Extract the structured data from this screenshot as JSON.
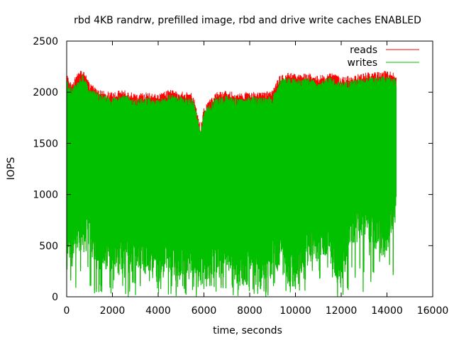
{
  "chart_data": {
    "type": "line",
    "title": "rbd 4KB randrw, prefilled image, rbd and drive write caches ENABLED",
    "xlabel": "time, seconds",
    "ylabel": "IOPS",
    "xlim": [
      0,
      16000
    ],
    "ylim": [
      0,
      2500
    ],
    "xticks": [
      0,
      2000,
      4000,
      6000,
      8000,
      10000,
      12000,
      14000,
      16000
    ],
    "yticks": [
      0,
      500,
      1000,
      1500,
      2000,
      2500
    ],
    "grid": false,
    "legend_position": "top-right",
    "series": [
      {
        "name": "reads",
        "color": "#ff0000",
        "x_range": [
          0,
          14400
        ],
        "upper_envelope": [
          [
            0,
            2150
          ],
          [
            200,
            2050
          ],
          [
            500,
            2150
          ],
          [
            700,
            2200
          ],
          [
            1000,
            2050
          ],
          [
            1500,
            1990
          ],
          [
            2000,
            1960
          ],
          [
            2500,
            1990
          ],
          [
            3000,
            1950
          ],
          [
            3500,
            1960
          ],
          [
            4000,
            1940
          ],
          [
            4500,
            1990
          ],
          [
            5000,
            1970
          ],
          [
            5500,
            1950
          ],
          [
            5700,
            1800
          ],
          [
            5850,
            1620
          ],
          [
            6000,
            1820
          ],
          [
            6500,
            1960
          ],
          [
            7000,
            1980
          ],
          [
            7500,
            1950
          ],
          [
            8000,
            1970
          ],
          [
            8500,
            1960
          ],
          [
            9000,
            1980
          ],
          [
            9300,
            2120
          ],
          [
            9600,
            2160
          ],
          [
            10000,
            2140
          ],
          [
            10500,
            2150
          ],
          [
            11000,
            2120
          ],
          [
            11500,
            2160
          ],
          [
            12000,
            2110
          ],
          [
            12500,
            2130
          ],
          [
            13000,
            2150
          ],
          [
            13500,
            2160
          ],
          [
            14000,
            2170
          ],
          [
            14400,
            2150
          ]
        ]
      },
      {
        "name": "writes",
        "color": "#00c000",
        "x_range": [
          0,
          14400
        ],
        "upper_envelope": [
          [
            0,
            2100
          ],
          [
            200,
            2000
          ],
          [
            500,
            2080
          ],
          [
            700,
            2130
          ],
          [
            1000,
            2000
          ],
          [
            1500,
            1940
          ],
          [
            2000,
            1910
          ],
          [
            2500,
            1940
          ],
          [
            3000,
            1900
          ],
          [
            3500,
            1910
          ],
          [
            4000,
            1890
          ],
          [
            4500,
            1940
          ],
          [
            5000,
            1920
          ],
          [
            5500,
            1900
          ],
          [
            5700,
            1750
          ],
          [
            5850,
            1580
          ],
          [
            6000,
            1770
          ],
          [
            6500,
            1910
          ],
          [
            7000,
            1930
          ],
          [
            7500,
            1900
          ],
          [
            8000,
            1920
          ],
          [
            8500,
            1910
          ],
          [
            9000,
            1930
          ],
          [
            9300,
            2070
          ],
          [
            9600,
            2110
          ],
          [
            10000,
            2090
          ],
          [
            10500,
            2100
          ],
          [
            11000,
            2070
          ],
          [
            11500,
            2110
          ],
          [
            12000,
            2060
          ],
          [
            12500,
            2080
          ],
          [
            13000,
            2100
          ],
          [
            13500,
            2110
          ],
          [
            14000,
            2120
          ],
          [
            14400,
            2100
          ]
        ],
        "lower_envelope": [
          [
            0,
            200
          ],
          [
            500,
            400
          ],
          [
            1000,
            450
          ],
          [
            1500,
            200
          ],
          [
            2000,
            250
          ],
          [
            2500,
            200
          ],
          [
            3000,
            250
          ],
          [
            3500,
            200
          ],
          [
            4000,
            150
          ],
          [
            4500,
            200
          ],
          [
            5000,
            200
          ],
          [
            5500,
            150
          ],
          [
            6000,
            100
          ],
          [
            6500,
            200
          ],
          [
            7000,
            150
          ],
          [
            7500,
            100
          ],
          [
            8000,
            150
          ],
          [
            8500,
            100
          ],
          [
            9000,
            250
          ],
          [
            9500,
            200
          ],
          [
            10000,
            50
          ],
          [
            10500,
            300
          ],
          [
            11000,
            350
          ],
          [
            11500,
            350
          ],
          [
            12000,
            50
          ],
          [
            12500,
            500
          ],
          [
            13000,
            550
          ],
          [
            13500,
            450
          ],
          [
            14000,
            350
          ],
          [
            14400,
            800
          ]
        ]
      }
    ]
  }
}
